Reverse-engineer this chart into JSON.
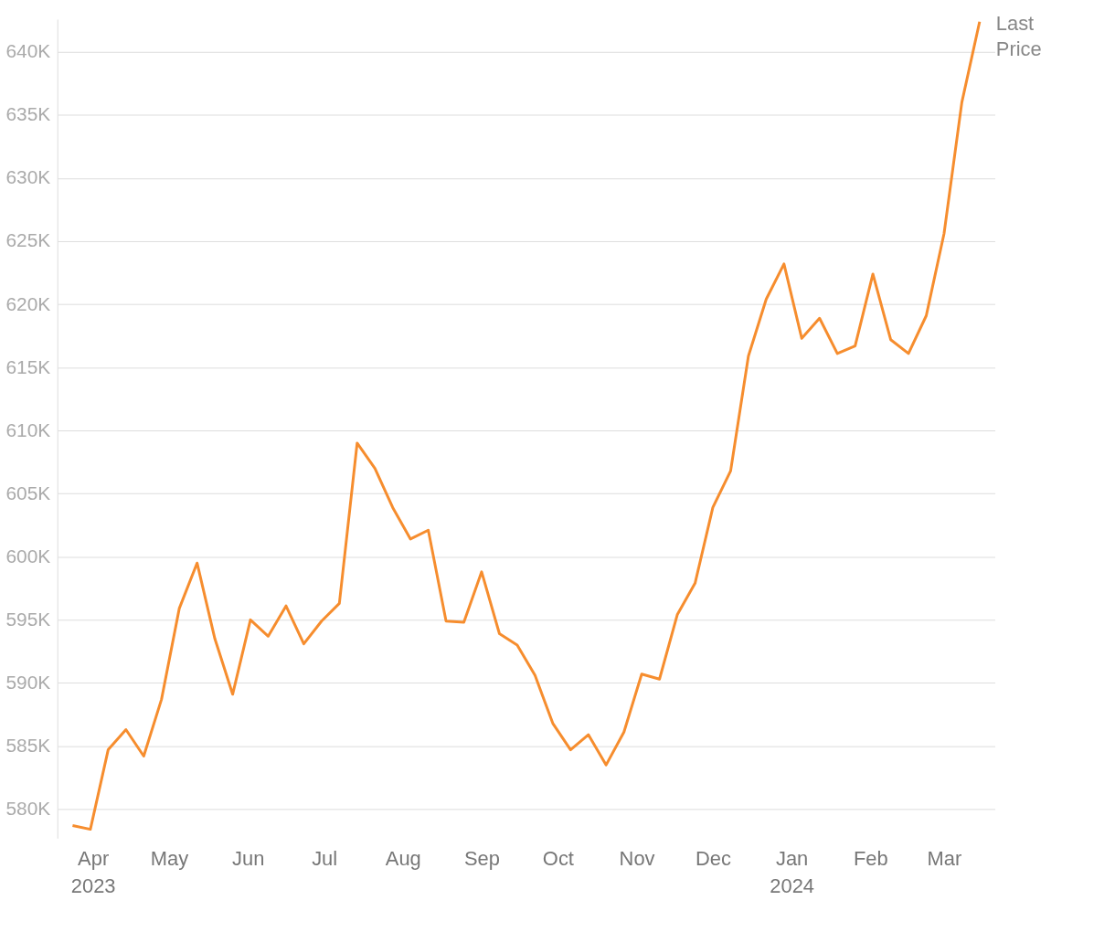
{
  "chart_data": {
    "type": "line",
    "x": [
      "2023-03-24",
      "2023-03-31",
      "2023-04-07",
      "2023-04-14",
      "2023-04-21",
      "2023-04-28",
      "2023-05-05",
      "2023-05-12",
      "2023-05-19",
      "2023-05-26",
      "2023-06-02",
      "2023-06-09",
      "2023-06-16",
      "2023-06-23",
      "2023-06-30",
      "2023-07-07",
      "2023-07-14",
      "2023-07-21",
      "2023-07-28",
      "2023-08-04",
      "2023-08-11",
      "2023-08-18",
      "2023-08-25",
      "2023-09-01",
      "2023-09-08",
      "2023-09-15",
      "2023-09-22",
      "2023-09-29",
      "2023-10-06",
      "2023-10-13",
      "2023-10-20",
      "2023-10-27",
      "2023-11-03",
      "2023-11-10",
      "2023-11-17",
      "2023-11-24",
      "2023-12-01",
      "2023-12-08",
      "2023-12-15",
      "2023-12-22",
      "2023-12-29",
      "2024-01-05",
      "2024-01-12",
      "2024-01-19",
      "2024-01-26",
      "2024-02-02",
      "2024-02-09",
      "2024-02-16",
      "2024-02-23",
      "2024-03-01",
      "2024-03-08",
      "2024-03-15"
    ],
    "series": [
      {
        "name": "Last Price",
        "color": "#f68d2e",
        "values": [
          578700,
          578400,
          584700,
          586300,
          584200,
          588700,
          595900,
          599500,
          593500,
          589100,
          595000,
          593700,
          596100,
          593100,
          594900,
          596300,
          609000,
          607000,
          603900,
          601400,
          602100,
          594900,
          594800,
          598800,
          593900,
          593000,
          590600,
          586800,
          584700,
          585900,
          583500,
          586100,
          590700,
          590300,
          595400,
          597900,
          603900,
          606800,
          615900,
          620400,
          623200,
          617300,
          618900,
          616100,
          616700,
          622400,
          617200,
          616100,
          619100,
          625600,
          636000,
          642400
        ]
      }
    ],
    "xlim": [
      "2023-03-18",
      "2024-03-21"
    ],
    "xticks": [
      {
        "value": "2023-04-01",
        "label": "Apr\n2023"
      },
      {
        "value": "2023-05-01",
        "label": "May"
      },
      {
        "value": "2023-06-01",
        "label": "Jun"
      },
      {
        "value": "2023-07-01",
        "label": "Jul"
      },
      {
        "value": "2023-08-01",
        "label": "Aug"
      },
      {
        "value": "2023-09-01",
        "label": "Sep"
      },
      {
        "value": "2023-10-01",
        "label": "Oct"
      },
      {
        "value": "2023-11-01",
        "label": "Nov"
      },
      {
        "value": "2023-12-01",
        "label": "Dec"
      },
      {
        "value": "2024-01-01",
        "label": "Jan\n2024"
      },
      {
        "value": "2024-02-01",
        "label": "Feb"
      },
      {
        "value": "2024-03-01",
        "label": "Mar"
      }
    ],
    "yticks": [
      {
        "value": 580000,
        "label": "580K"
      },
      {
        "value": 585000,
        "label": "585K"
      },
      {
        "value": 590000,
        "label": "590K"
      },
      {
        "value": 595000,
        "label": "595K"
      },
      {
        "value": 600000,
        "label": "600K"
      },
      {
        "value": 605000,
        "label": "605K"
      },
      {
        "value": 610000,
        "label": "610K"
      },
      {
        "value": 615000,
        "label": "615K"
      },
      {
        "value": 620000,
        "label": "620K"
      },
      {
        "value": 625000,
        "label": "625K"
      },
      {
        "value": 630000,
        "label": "630K"
      },
      {
        "value": 635000,
        "label": "635K"
      },
      {
        "value": 640000,
        "label": "640K"
      }
    ],
    "ylim": [
      577700,
      642600
    ],
    "grid": "y",
    "legend": false,
    "marker": "none",
    "line_style": "solid"
  }
}
